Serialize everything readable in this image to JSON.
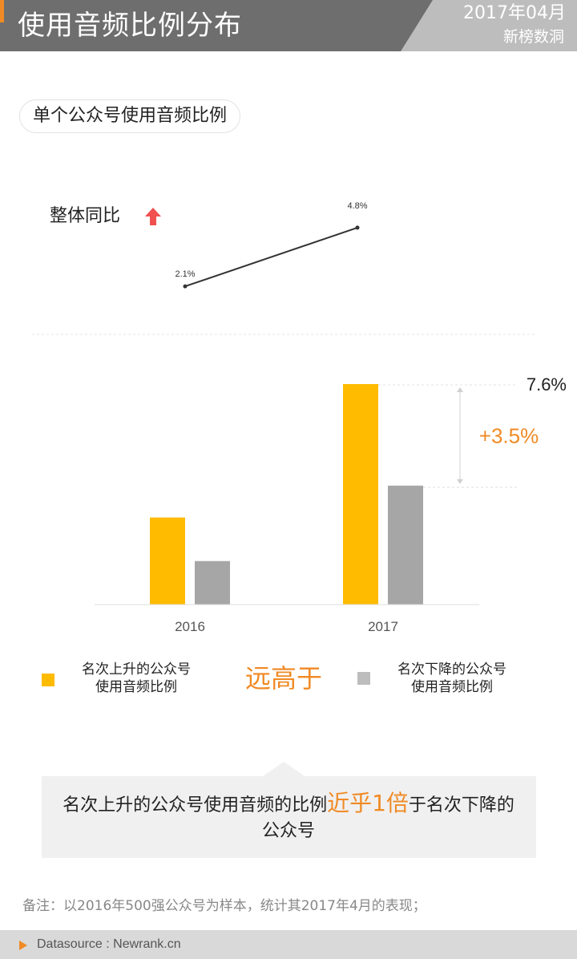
{
  "header": {
    "title": "使用音频比例分布",
    "date": "2017年04月",
    "source": "新榜数洞"
  },
  "section": {
    "title": "单个公众号使用音频比例"
  },
  "yoy": {
    "label": "整体同比",
    "arrow_icon": "up-arrow-icon",
    "arrow_color": "#f0504f"
  },
  "chart_data": [
    {
      "type": "line",
      "title": "整体同比",
      "x": [
        "2016",
        "2017"
      ],
      "values": [
        2.1,
        4.8
      ],
      "value_labels": [
        "2.1%",
        "4.8%"
      ]
    },
    {
      "type": "bar",
      "categories": [
        "2016",
        "2017"
      ],
      "series": [
        {
          "name": "名次上升的公众号使用音频比例",
          "color": "#ffbb00",
          "values": [
            3.0,
            7.6
          ]
        },
        {
          "name": "名次下降的公众号使用音频比例",
          "color": "#a6a6a6",
          "values": [
            1.5,
            4.1
          ]
        }
      ],
      "ylim": [
        0,
        8.0
      ],
      "annotations": {
        "top_value": "7.6%",
        "difference": "+3.5%"
      },
      "legend_position": "bottom"
    }
  ],
  "legend": {
    "rising": "名次上升的公众号\n使用音频比例",
    "falling": "名次下降的公众号\n使用音频比例",
    "compare": "远高于"
  },
  "conclusion": {
    "before": "名次上升的公众号使用音频的比例",
    "highlight": "近乎1倍",
    "after": "于名次下降的公众号"
  },
  "footnote": "备注：以2016年500强公众号为样本，统计其2017年4月的表现；",
  "footer": {
    "source": "Datasource : Newrank.cn"
  },
  "colors": {
    "accent": "#f08a24",
    "header_bg": "#6e6e6e",
    "rising": "#ffbb00",
    "falling": "#a6a6a6"
  }
}
